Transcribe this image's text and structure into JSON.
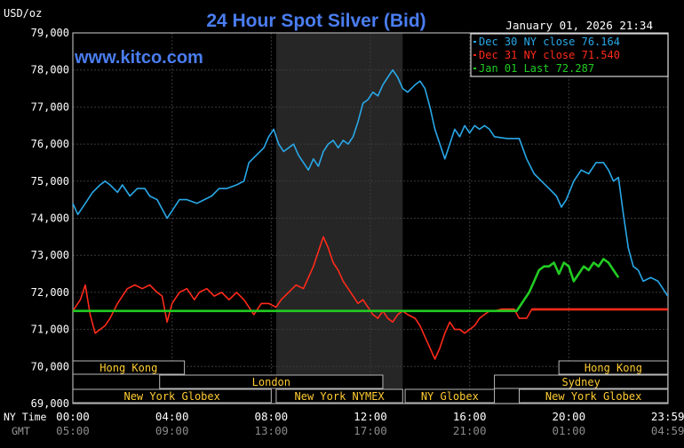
{
  "chart_data": {
    "type": "line",
    "title": "24 Hour Spot Silver (Bid)",
    "watermark": "www.kitco.com",
    "ylabel": "USD/oz",
    "timestamp": "January 01, 2026 21:34",
    "ylim": [
      69000,
      79000
    ],
    "yticks": [
      "69,000",
      "70,000",
      "71,000",
      "72,000",
      "73,000",
      "74,000",
      "75,000",
      "76,000",
      "77,000",
      "78,000",
      "79,000"
    ],
    "xlim": [
      0,
      24
    ],
    "ny_time_label": "NY Time",
    "gmt_label": "GMT",
    "xticks_ny": [
      "00:00",
      "04:00",
      "08:00",
      "12:00",
      "16:00",
      "20:00",
      "23:59"
    ],
    "xticks_gmt": [
      "05:00",
      "09:00",
      "13:00",
      "17:00",
      "21:00",
      "01:00",
      "04:59"
    ],
    "legend": [
      {
        "label": "Dec 30 NY close 76.164",
        "color": "#29a8e8"
      },
      {
        "label": "Dec 31 NY close 71.540",
        "color": "#ff2a1a"
      },
      {
        "label": "Jan 01 Last 72.287",
        "color": "#22cc22"
      }
    ],
    "sessions": [
      {
        "label": "Hong Kong",
        "row": 0,
        "start": 0,
        "end": 4.5
      },
      {
        "label": "Hong Kong",
        "row": 0,
        "start": 19.6,
        "end": 23.99
      },
      {
        "label": "London",
        "row": 1,
        "start": 3.5,
        "end": 12.5
      },
      {
        "label": "Sydney",
        "row": 1,
        "start": 17.0,
        "end": 23.99
      },
      {
        "label": "New York Globex",
        "row": 2,
        "start": 0,
        "end": 8.0
      },
      {
        "label": "New York NYMEX",
        "row": 2,
        "start": 8.2,
        "end": 13.3
      },
      {
        "label": "NY Globex",
        "row": 2,
        "start": 13.4,
        "end": 17.0
      },
      {
        "label": "New York Globex",
        "row": 2,
        "start": 18.0,
        "end": 23.99
      }
    ],
    "shaded_range": [
      8.2,
      13.3
    ],
    "series": [
      {
        "name": "Dec 30",
        "color": "#29a8e8",
        "points": [
          [
            0,
            74400
          ],
          [
            0.2,
            74100
          ],
          [
            0.5,
            74400
          ],
          [
            0.8,
            74700
          ],
          [
            1.1,
            74900
          ],
          [
            1.3,
            75000
          ],
          [
            1.5,
            74900
          ],
          [
            1.8,
            74700
          ],
          [
            2.0,
            74900
          ],
          [
            2.3,
            74600
          ],
          [
            2.6,
            74800
          ],
          [
            2.9,
            74800
          ],
          [
            3.1,
            74600
          ],
          [
            3.4,
            74500
          ],
          [
            3.8,
            74000
          ],
          [
            4.0,
            74200
          ],
          [
            4.3,
            74500
          ],
          [
            4.6,
            74500
          ],
          [
            5.0,
            74400
          ],
          [
            5.3,
            74500
          ],
          [
            5.6,
            74600
          ],
          [
            5.9,
            74800
          ],
          [
            6.2,
            74800
          ],
          [
            6.6,
            74900
          ],
          [
            6.9,
            75000
          ],
          [
            7.1,
            75500
          ],
          [
            7.4,
            75700
          ],
          [
            7.7,
            75900
          ],
          [
            7.9,
            76200
          ],
          [
            8.1,
            76400
          ],
          [
            8.3,
            76000
          ],
          [
            8.5,
            75800
          ],
          [
            8.7,
            75900
          ],
          [
            8.9,
            76000
          ],
          [
            9.1,
            75700
          ],
          [
            9.3,
            75500
          ],
          [
            9.5,
            75300
          ],
          [
            9.7,
            75600
          ],
          [
            9.9,
            75400
          ],
          [
            10.1,
            75800
          ],
          [
            10.3,
            76000
          ],
          [
            10.5,
            76100
          ],
          [
            10.7,
            75900
          ],
          [
            10.9,
            76100
          ],
          [
            11.1,
            76000
          ],
          [
            11.3,
            76200
          ],
          [
            11.5,
            76600
          ],
          [
            11.7,
            77100
          ],
          [
            11.9,
            77200
          ],
          [
            12.1,
            77400
          ],
          [
            12.3,
            77300
          ],
          [
            12.5,
            77600
          ],
          [
            12.7,
            77800
          ],
          [
            12.9,
            78000
          ],
          [
            13.1,
            77800
          ],
          [
            13.3,
            77500
          ],
          [
            13.5,
            77400
          ],
          [
            13.8,
            77600
          ],
          [
            14.0,
            77700
          ],
          [
            14.2,
            77500
          ],
          [
            14.4,
            77000
          ],
          [
            14.6,
            76400
          ],
          [
            14.8,
            76000
          ],
          [
            15.0,
            75600
          ],
          [
            15.2,
            76000
          ],
          [
            15.4,
            76400
          ],
          [
            15.6,
            76200
          ],
          [
            15.8,
            76500
          ],
          [
            16.0,
            76300
          ],
          [
            16.2,
            76500
          ],
          [
            16.4,
            76400
          ],
          [
            16.6,
            76500
          ],
          [
            16.8,
            76400
          ],
          [
            17.0,
            76200
          ],
          [
            17.5,
            76150
          ],
          [
            18.0,
            76150
          ],
          [
            18.3,
            75600
          ],
          [
            18.6,
            75200
          ],
          [
            18.9,
            75000
          ],
          [
            19.2,
            74800
          ],
          [
            19.5,
            74600
          ],
          [
            19.7,
            74300
          ],
          [
            19.9,
            74500
          ],
          [
            20.2,
            75000
          ],
          [
            20.5,
            75300
          ],
          [
            20.8,
            75200
          ],
          [
            21.1,
            75500
          ],
          [
            21.4,
            75500
          ],
          [
            21.6,
            75300
          ],
          [
            21.8,
            75000
          ],
          [
            22.0,
            75100
          ],
          [
            22.2,
            74100
          ],
          [
            22.4,
            73200
          ],
          [
            22.6,
            72700
          ],
          [
            22.8,
            72600
          ],
          [
            23.0,
            72300
          ],
          [
            23.3,
            72400
          ],
          [
            23.6,
            72300
          ],
          [
            23.99,
            71900
          ]
        ]
      },
      {
        "name": "Dec 31",
        "color": "#ff2a1a",
        "points": [
          [
            0,
            71500
          ],
          [
            0.3,
            71800
          ],
          [
            0.5,
            72200
          ],
          [
            0.7,
            71400
          ],
          [
            0.9,
            70900
          ],
          [
            1.1,
            71000
          ],
          [
            1.3,
            71100
          ],
          [
            1.5,
            71300
          ],
          [
            1.8,
            71700
          ],
          [
            2.0,
            71900
          ],
          [
            2.2,
            72100
          ],
          [
            2.5,
            72200
          ],
          [
            2.8,
            72100
          ],
          [
            3.1,
            72200
          ],
          [
            3.4,
            72000
          ],
          [
            3.6,
            71900
          ],
          [
            3.8,
            71200
          ],
          [
            4.0,
            71700
          ],
          [
            4.3,
            72000
          ],
          [
            4.6,
            72100
          ],
          [
            4.9,
            71800
          ],
          [
            5.1,
            72000
          ],
          [
            5.4,
            72100
          ],
          [
            5.7,
            71900
          ],
          [
            6.0,
            72000
          ],
          [
            6.3,
            71800
          ],
          [
            6.6,
            72000
          ],
          [
            6.9,
            71800
          ],
          [
            7.1,
            71600
          ],
          [
            7.3,
            71400
          ],
          [
            7.6,
            71700
          ],
          [
            7.9,
            71700
          ],
          [
            8.2,
            71600
          ],
          [
            8.4,
            71800
          ],
          [
            8.7,
            72000
          ],
          [
            9.0,
            72200
          ],
          [
            9.3,
            72100
          ],
          [
            9.5,
            72400
          ],
          [
            9.7,
            72700
          ],
          [
            9.9,
            73100
          ],
          [
            10.1,
            73500
          ],
          [
            10.3,
            73200
          ],
          [
            10.5,
            72800
          ],
          [
            10.7,
            72600
          ],
          [
            10.9,
            72300
          ],
          [
            11.1,
            72100
          ],
          [
            11.3,
            71900
          ],
          [
            11.5,
            71700
          ],
          [
            11.7,
            71800
          ],
          [
            11.9,
            71600
          ],
          [
            12.1,
            71400
          ],
          [
            12.3,
            71300
          ],
          [
            12.5,
            71500
          ],
          [
            12.7,
            71300
          ],
          [
            12.9,
            71200
          ],
          [
            13.1,
            71400
          ],
          [
            13.3,
            71500
          ],
          [
            13.5,
            71400
          ],
          [
            13.8,
            71300
          ],
          [
            14.0,
            71100
          ],
          [
            14.2,
            70800
          ],
          [
            14.4,
            70500
          ],
          [
            14.6,
            70200
          ],
          [
            14.8,
            70500
          ],
          [
            15.0,
            70900
          ],
          [
            15.2,
            71200
          ],
          [
            15.4,
            71000
          ],
          [
            15.6,
            71000
          ],
          [
            15.8,
            70900
          ],
          [
            16.0,
            71000
          ],
          [
            16.2,
            71100
          ],
          [
            16.4,
            71300
          ],
          [
            16.6,
            71400
          ],
          [
            16.8,
            71500
          ],
          [
            17.0,
            71500
          ],
          [
            17.3,
            71550
          ],
          [
            17.5,
            71550
          ],
          [
            17.8,
            71550
          ],
          [
            18.0,
            71300
          ],
          [
            18.3,
            71300
          ],
          [
            18.5,
            71540
          ],
          [
            19.0,
            71540
          ],
          [
            20.0,
            71540
          ],
          [
            21.0,
            71540
          ],
          [
            22.0,
            71540
          ],
          [
            23.0,
            71540
          ],
          [
            23.99,
            71540
          ]
        ]
      },
      {
        "name": "Jan 01",
        "color": "#22cc22",
        "points": [
          [
            0,
            71500
          ],
          [
            2,
            71500
          ],
          [
            4,
            71500
          ],
          [
            6,
            71500
          ],
          [
            8,
            71500
          ],
          [
            10,
            71500
          ],
          [
            12,
            71500
          ],
          [
            14,
            71500
          ],
          [
            16,
            71500
          ],
          [
            17.9,
            71500
          ],
          [
            18.0,
            71600
          ],
          [
            18.2,
            71800
          ],
          [
            18.4,
            72000
          ],
          [
            18.6,
            72300
          ],
          [
            18.8,
            72600
          ],
          [
            19.0,
            72700
          ],
          [
            19.2,
            72700
          ],
          [
            19.4,
            72800
          ],
          [
            19.6,
            72500
          ],
          [
            19.8,
            72800
          ],
          [
            20.0,
            72700
          ],
          [
            20.2,
            72300
          ],
          [
            20.4,
            72500
          ],
          [
            20.6,
            72700
          ],
          [
            20.8,
            72600
          ],
          [
            21.0,
            72800
          ],
          [
            21.2,
            72700
          ],
          [
            21.4,
            72900
          ],
          [
            21.6,
            72800
          ],
          [
            21.8,
            72600
          ],
          [
            22.0,
            72400
          ]
        ]
      }
    ]
  }
}
